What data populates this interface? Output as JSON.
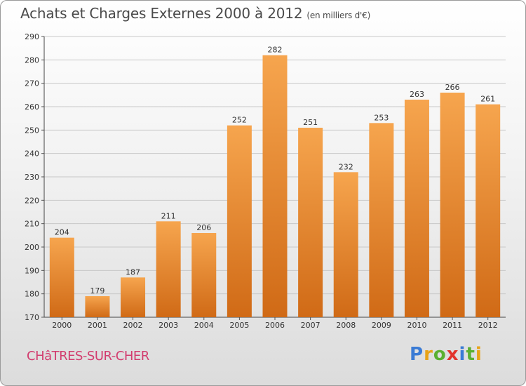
{
  "header": {
    "title": "Achats et Charges Externes 2000 à 2012",
    "subtitle": "(en milliers d'€)"
  },
  "footer": {
    "commune": "CHâTRES-SUR-CHER",
    "logo_text": "Proxiti"
  },
  "colors": {
    "bar_top": "#f6a54e",
    "bar_bottom": "#d06a16",
    "grid": "#c8c8c8",
    "commune": "#d23c6e"
  },
  "chart_data": {
    "type": "bar",
    "title": "Achats et Charges Externes 2000 à 2012",
    "subtitle": "(en milliers d'€)",
    "xlabel": "",
    "ylabel": "",
    "categories": [
      "2000",
      "2001",
      "2002",
      "2003",
      "2004",
      "2005",
      "2006",
      "2007",
      "2008",
      "2009",
      "2010",
      "2011",
      "2012"
    ],
    "values": [
      204,
      179,
      187,
      211,
      206,
      252,
      282,
      251,
      232,
      253,
      263,
      266,
      261
    ],
    "ylim": [
      170,
      290
    ],
    "yticks": [
      170,
      180,
      190,
      200,
      210,
      220,
      230,
      240,
      250,
      260,
      270,
      280,
      290
    ],
    "grid": true,
    "legend": "none"
  }
}
